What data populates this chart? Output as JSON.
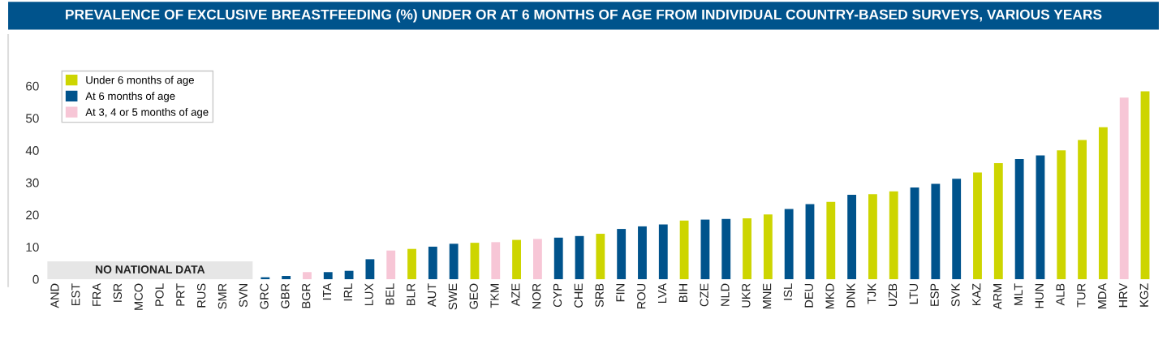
{
  "chart_data": {
    "type": "bar",
    "title": "PREVALENCE OF EXCLUSIVE BREASTFEEDING (%) UNDER OR AT 6 MONTHS OF AGE FROM INDIVIDUAL COUNTRY-BASED SURVEYS, VARIOUS YEARS",
    "categories": [
      "AND",
      "EST",
      "FRA",
      "ISR",
      "MCO",
      "POL",
      "PRT",
      "RUS",
      "SMR",
      "SVN",
      "GRC",
      "GBR",
      "BGR",
      "ITA",
      "IRL",
      "LUX",
      "BEL",
      "BLR",
      "AUT",
      "SWE",
      "GEO",
      "TKM",
      "AZE",
      "NOR",
      "CYP",
      "CHE",
      "SRB",
      "FIN",
      "ROU",
      "LVA",
      "BIH",
      "CZE",
      "NLD",
      "UKR",
      "MNE",
      "ISL",
      "DEU",
      "MKD",
      "DNK",
      "TJK",
      "UZB",
      "LTU",
      "ESP",
      "SVK",
      "KAZ",
      "ARM",
      "MLT",
      "HUN",
      "ALB",
      "TUR",
      "MDA",
      "HRV",
      "KGZ"
    ],
    "series": [
      {
        "name": "Under 6 months of age",
        "color": "#cdd500",
        "values": [
          null,
          null,
          null,
          null,
          null,
          null,
          null,
          null,
          null,
          null,
          null,
          null,
          null,
          null,
          null,
          null,
          null,
          9.4,
          null,
          null,
          11.3,
          null,
          12.2,
          null,
          null,
          null,
          14.1,
          null,
          null,
          null,
          18.2,
          null,
          null,
          18.9,
          20.1,
          null,
          null,
          24.0,
          null,
          26.4,
          27.3,
          null,
          null,
          null,
          33.1,
          36.0,
          null,
          null,
          40.0,
          43.2,
          47.2,
          null,
          58.3
        ]
      },
      {
        "name": "At 6 months of age",
        "color": "#00538c",
        "values": [
          null,
          null,
          null,
          null,
          null,
          null,
          null,
          null,
          null,
          null,
          0.6,
          1.0,
          null,
          2.2,
          2.6,
          6.2,
          null,
          null,
          10.1,
          11.0,
          null,
          null,
          null,
          null,
          12.9,
          13.4,
          null,
          15.6,
          16.4,
          17.0,
          null,
          18.5,
          18.7,
          null,
          null,
          21.8,
          23.3,
          null,
          26.2,
          null,
          null,
          28.5,
          29.6,
          31.2,
          null,
          null,
          37.3,
          38.4,
          null,
          null,
          null,
          null,
          null
        ]
      },
      {
        "name": "At 3, 4 or 5 months of age",
        "color": "#f7c6d6",
        "values": [
          null,
          null,
          null,
          null,
          null,
          null,
          null,
          null,
          null,
          null,
          null,
          null,
          2.2,
          null,
          null,
          null,
          8.9,
          null,
          null,
          null,
          null,
          11.5,
          null,
          12.5,
          null,
          null,
          null,
          null,
          null,
          null,
          null,
          null,
          null,
          null,
          null,
          null,
          null,
          null,
          null,
          null,
          null,
          null,
          null,
          null,
          null,
          null,
          null,
          null,
          null,
          null,
          null,
          56.4,
          null
        ]
      }
    ],
    "ylim": [
      0,
      65
    ],
    "yticks": [
      0,
      10,
      20,
      30,
      40,
      50,
      60
    ],
    "grid": false,
    "legend": "top left",
    "annotations": [
      "NO NATIONAL DATA"
    ]
  }
}
